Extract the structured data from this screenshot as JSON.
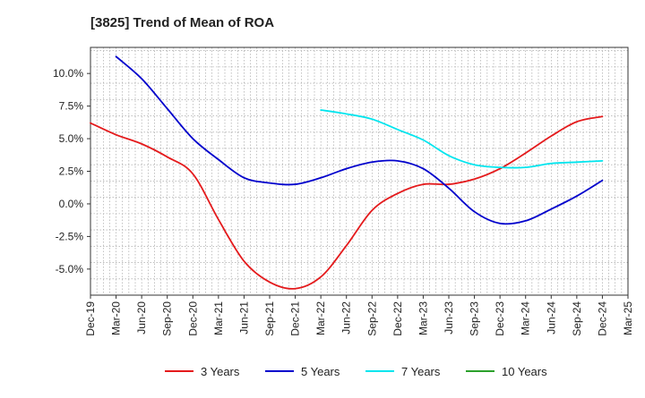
{
  "chart_data": {
    "type": "line",
    "title": "[3825]  Trend of Mean of ROA",
    "xlabel": "",
    "ylabel": "",
    "x": [
      "Dec-19",
      "Mar-20",
      "Jun-20",
      "Sep-20",
      "Dec-20",
      "Mar-21",
      "Jun-21",
      "Sep-21",
      "Dec-21",
      "Mar-22",
      "Jun-22",
      "Sep-22",
      "Dec-22",
      "Mar-23",
      "Jun-23",
      "Sep-23",
      "Dec-23",
      "Mar-24",
      "Jun-24",
      "Sep-24",
      "Dec-24",
      "Mar-25"
    ],
    "ylim": [
      -7.0,
      12.0
    ],
    "yticks": [
      10.0,
      7.5,
      5.0,
      2.5,
      0.0,
      -2.5,
      -5.0
    ],
    "ytick_labels": [
      "10.0%",
      "7.5%",
      "5.0%",
      "2.5%",
      "0.0%",
      "-2.5%",
      "-5.0%"
    ],
    "grid": true,
    "legend_position": "bottom",
    "series": [
      {
        "name": "3 Years",
        "color": "#e41a1c",
        "values": [
          6.2,
          5.3,
          4.6,
          3.6,
          2.3,
          -1.2,
          -4.4,
          -6.0,
          -6.5,
          -5.6,
          -3.2,
          -0.5,
          0.8,
          1.5,
          1.5,
          1.9,
          2.7,
          3.9,
          5.2,
          6.3,
          6.7,
          null
        ]
      },
      {
        "name": "5 Years",
        "color": "#0000cc",
        "values": [
          null,
          11.3,
          9.6,
          7.3,
          5.0,
          3.4,
          2.0,
          1.6,
          1.5,
          2.0,
          2.7,
          3.2,
          3.3,
          2.7,
          1.2,
          -0.6,
          -1.5,
          -1.3,
          -0.4,
          0.6,
          1.8,
          null
        ]
      },
      {
        "name": "7 Years",
        "color": "#00e5ee",
        "values": [
          null,
          null,
          null,
          null,
          null,
          null,
          null,
          null,
          null,
          7.2,
          6.9,
          6.5,
          5.7,
          4.9,
          3.7,
          3.0,
          2.8,
          2.8,
          3.1,
          3.2,
          3.3,
          null
        ]
      },
      {
        "name": "10 Years",
        "color": "#2ca02c",
        "values": [
          null,
          null,
          null,
          null,
          null,
          null,
          null,
          null,
          null,
          null,
          null,
          null,
          null,
          null,
          null,
          null,
          null,
          null,
          null,
          null,
          null,
          null
        ]
      }
    ]
  }
}
